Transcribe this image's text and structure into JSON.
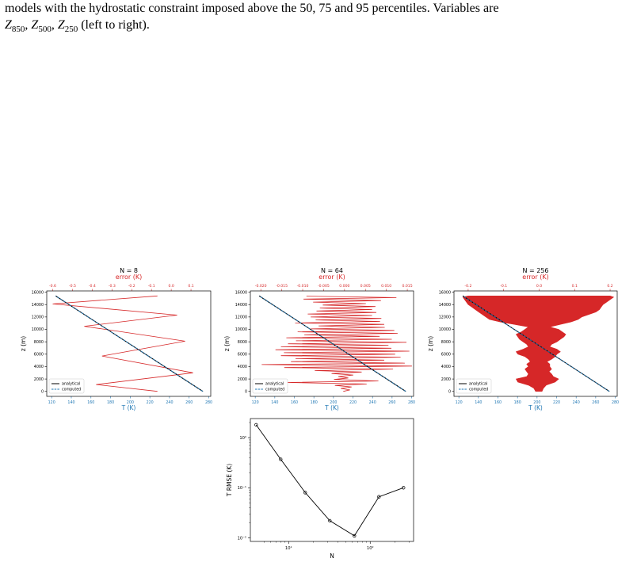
{
  "caption": {
    "line1": "models with the hydrostatic constraint imposed above the 50, 75 and 95 percentiles. Variables are",
    "z850_sub": "850",
    "z500_sub": "500",
    "z250_sub": "250",
    "line2_tail": "(left to right)."
  },
  "colors": {
    "profile": "#1f77b4",
    "error": "#d62728",
    "axis_blue": "#1f77b4",
    "axis_red": "#d62728"
  },
  "chart_data": [
    {
      "type": "line",
      "title": "N = 8",
      "top_xlabel": "error (K)",
      "xlabel": "T (K)",
      "ylabel": "z (m)",
      "xlim": [
        115,
        282
      ],
      "ylim": [
        -800,
        16200
      ],
      "xticks": [
        120,
        140,
        160,
        180,
        200,
        220,
        240,
        260,
        280
      ],
      "yticks": [
        0,
        2000,
        4000,
        6000,
        8000,
        10000,
        12000,
        14000,
        16000
      ],
      "top_xlim": [
        -0.63,
        0.2
      ],
      "top_xticks": [
        -0.6,
        -0.5,
        -0.4,
        -0.3,
        -0.2,
        -0.1,
        0.0,
        0.1
      ],
      "top_xticklabels": [
        "-0.6",
        "-0.5",
        "-0.4",
        "-0.3",
        "-0.2",
        "-0.1",
        "0.0",
        "0.1"
      ],
      "legend": [
        "analytical",
        "computed"
      ],
      "legend_loc": "lower left",
      "profile": {
        "x": [
          274,
          124
        ],
        "y": [
          0,
          15400
        ]
      },
      "error": {
        "x": [
          -0.07,
          -0.38,
          0.11,
          -0.35,
          0.07,
          -0.44,
          0.03,
          -0.6,
          -0.07
        ],
        "y": [
          0,
          1100,
          3000,
          5700,
          8100,
          10500,
          12300,
          14100,
          15400
        ]
      }
    },
    {
      "type": "line",
      "title": "N = 64",
      "top_xlabel": "error (K)",
      "xlabel": "T (K)",
      "ylabel": "z (m)",
      "xlim": [
        115,
        282
      ],
      "ylim": [
        -800,
        16200
      ],
      "xticks": [
        120,
        140,
        160,
        180,
        200,
        220,
        240,
        260,
        280
      ],
      "yticks": [
        0,
        2000,
        4000,
        6000,
        8000,
        10000,
        12000,
        14000,
        16000
      ],
      "top_xlim": [
        -0.0225,
        0.0165
      ],
      "top_xticks": [
        -0.02,
        -0.015,
        -0.01,
        -0.005,
        0.0,
        0.005,
        0.01,
        0.015
      ],
      "top_xticklabels": [
        "-0.020",
        "-0.015",
        "-0.010",
        "-0.005",
        "0.000",
        "0.005",
        "0.010",
        "0.015"
      ],
      "legend": [
        "analytical",
        "computed"
      ],
      "legend_loc": "lower left",
      "profile": {
        "x": [
          274,
          124
        ],
        "y": [
          0,
          15400
        ]
      },
      "error": {
        "x": [
          -0.0003,
          0.0013,
          -0.0009,
          0.0017,
          -0.0023,
          0.0053,
          -0.0137,
          0.0081,
          -0.0025,
          0.0009,
          -0.0015,
          0.0021,
          -0.0031,
          0.0041,
          -0.0071,
          0.0116,
          -0.0144,
          0.0161,
          -0.0198,
          0.0144,
          -0.0128,
          0.0095,
          -0.0117,
          0.0134,
          -0.0152,
          0.0121,
          -0.0145,
          0.0155,
          -0.0165,
          0.0112,
          -0.0152,
          0.0105,
          -0.0135,
          0.0148,
          -0.0116,
          0.0113,
          -0.0139,
          0.0084,
          -0.0096,
          0.0127,
          -0.0112,
          0.0119,
          -0.0081,
          0.0096,
          -0.0062,
          0.0095,
          -0.0118,
          0.0085,
          -0.0069,
          0.0088,
          -0.0081,
          0.0066,
          -0.0088,
          0.0076,
          -0.0067,
          0.0066,
          -0.0059,
          0.0074,
          -0.0052,
          0.0051,
          -0.0075,
          0.0087,
          -0.0098,
          0.0124,
          -0.0091
        ],
        "y": [
          0,
          240,
          480,
          720,
          960,
          1200,
          1440,
          1680,
          1920,
          2160,
          2400,
          2640,
          2880,
          3120,
          3360,
          3600,
          3840,
          4080,
          4320,
          4560,
          4800,
          5040,
          5280,
          5520,
          5760,
          6000,
          6240,
          6480,
          6720,
          6960,
          7200,
          7440,
          7680,
          7920,
          8160,
          8400,
          8640,
          8880,
          9120,
          9360,
          9600,
          9840,
          10080,
          10320,
          10560,
          10800,
          11040,
          11280,
          11520,
          11760,
          12000,
          12240,
          12480,
          12720,
          12960,
          13200,
          13440,
          13680,
          13920,
          14160,
          14400,
          14640,
          14880,
          15120,
          15360
        ]
      }
    },
    {
      "type": "line",
      "title": "N = 256",
      "top_xlabel": "error (K)",
      "xlabel": "T (K)",
      "ylabel": "z (m)",
      "xlim": [
        115,
        282
      ],
      "ylim": [
        -800,
        16200
      ],
      "xticks": [
        120,
        140,
        160,
        180,
        200,
        220,
        240,
        260,
        280
      ],
      "yticks": [
        0,
        2000,
        4000,
        6000,
        8000,
        10000,
        12000,
        14000,
        16000
      ],
      "top_xlim": [
        -0.24,
        0.22
      ],
      "top_xticks": [
        -0.2,
        -0.1,
        0.0,
        0.1,
        0.2
      ],
      "top_xticklabels": [
        "-0.2",
        "-0.1",
        "0.0",
        "0.1",
        "0.2"
      ],
      "legend": [
        "analytical",
        "computed"
      ],
      "legend_loc": "lower left",
      "profile": {
        "x": [
          274,
          124
        ],
        "y": [
          0,
          15400
        ]
      },
      "error_envelope": {
        "y": [
          0,
          500,
          1000,
          1500,
          2000,
          2400,
          2800,
          3200,
          3600,
          4000,
          4400,
          4800,
          5200,
          5600,
          6000,
          6400,
          6800,
          7200,
          7600,
          8000,
          8400,
          8800,
          9200,
          9600,
          10000,
          10400,
          10800,
          11200,
          11600,
          12000,
          12400,
          12800,
          13200,
          13600,
          14000,
          14400,
          14800,
          15200,
          15400
        ],
        "right": [
          0.008,
          0.012,
          0.02,
          0.045,
          0.055,
          0.04,
          0.035,
          0.028,
          0.035,
          0.03,
          0.03,
          0.022,
          0.035,
          0.045,
          0.05,
          0.06,
          0.05,
          0.03,
          0.035,
          0.05,
          0.06,
          0.07,
          0.075,
          0.065,
          0.055,
          0.03,
          0.06,
          0.09,
          0.11,
          0.12,
          0.14,
          0.16,
          0.17,
          0.175,
          0.18,
          0.19,
          0.2,
          0.21,
          0.2
        ],
        "left": [
          -0.01,
          -0.015,
          -0.03,
          -0.06,
          -0.065,
          -0.035,
          -0.03,
          -0.035,
          -0.04,
          -0.03,
          -0.035,
          -0.025,
          -0.03,
          -0.04,
          -0.06,
          -0.065,
          -0.045,
          -0.03,
          -0.035,
          -0.045,
          -0.055,
          -0.06,
          -0.065,
          -0.05,
          -0.04,
          -0.03,
          -0.07,
          -0.11,
          -0.14,
          -0.15,
          -0.16,
          -0.17,
          -0.18,
          -0.19,
          -0.2,
          -0.205,
          -0.21,
          -0.215,
          -0.2
        ]
      }
    },
    {
      "type": "line",
      "xlabel": "N",
      "ylabel": "T RMSE (K)",
      "xscale": "log",
      "yscale": "log",
      "xlim": [
        3.4,
        340
      ],
      "ylim": [
        0.0085,
        2.4
      ],
      "xticks": [
        10,
        100
      ],
      "xticklabels": [
        "10¹",
        "10²"
      ],
      "yticks": [
        0.01,
        0.1,
        1
      ],
      "yticklabels": [
        "10⁻²",
        "10⁻¹",
        "10⁰"
      ],
      "x": [
        4,
        8,
        16,
        32,
        64,
        128,
        256
      ],
      "y": [
        1.8,
        0.37,
        0.08,
        0.022,
        0.011,
        0.066,
        0.1
      ],
      "color": "#000000"
    }
  ]
}
